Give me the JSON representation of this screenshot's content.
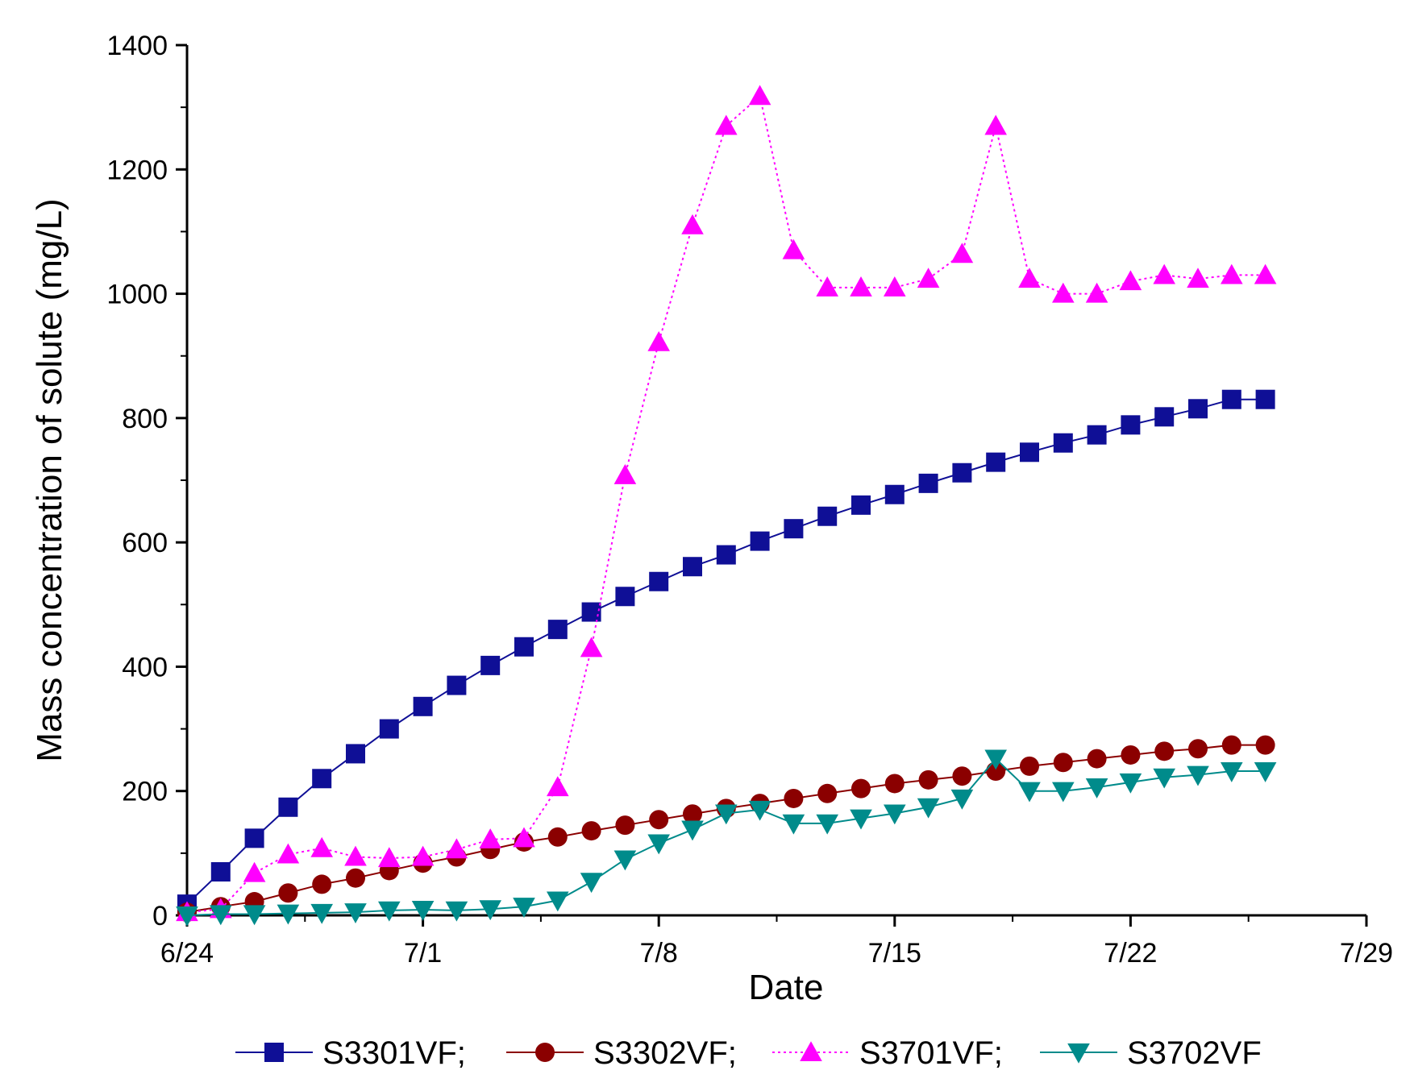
{
  "chart_data": {
    "type": "line",
    "title": "",
    "xlabel": "Date",
    "ylabel": "Mass concentration of solute (mg/L)",
    "x_ticks": [
      "6/24",
      "7/1",
      "7/8",
      "7/15",
      "7/22",
      "7/29"
    ],
    "x_tick_days": [
      0,
      7,
      14,
      21,
      28,
      35
    ],
    "xlim_days": [
      0,
      35
    ],
    "y_ticks": [
      "0",
      "200",
      "400",
      "600",
      "800",
      "1000",
      "1200",
      "1400"
    ],
    "ylim": [
      0,
      1400
    ],
    "grid": false,
    "legend_position": "bottom",
    "series": [
      {
        "name": "S3301VF",
        "legend_label": "S3301VF;",
        "color": "#0f0f96",
        "marker": "square",
        "line": "solid",
        "x_days": [
          0,
          1,
          2,
          3,
          4,
          5,
          6,
          7,
          8,
          9,
          10,
          11,
          12,
          13,
          14,
          15,
          16,
          17,
          18,
          19,
          20,
          21,
          22,
          23,
          24,
          25,
          26,
          27,
          28,
          29,
          30,
          31,
          32
        ],
        "values": [
          18,
          70,
          124,
          174,
          220,
          260,
          300,
          336,
          370,
          402,
          432,
          460,
          488,
          513,
          537,
          561,
          580,
          602,
          622,
          642,
          660,
          677,
          695,
          712,
          729,
          745,
          760,
          773,
          789,
          802,
          815,
          830,
          830
        ]
      },
      {
        "name": "S3302VF",
        "legend_label": "S3302VF;",
        "color": "#8b0000",
        "marker": "circle",
        "line": "solid",
        "x_days": [
          0,
          1,
          2,
          3,
          4,
          5,
          6,
          7,
          8,
          9,
          10,
          11,
          12,
          13,
          14,
          15,
          16,
          17,
          18,
          19,
          20,
          21,
          22,
          23,
          24,
          25,
          26,
          27,
          28,
          29,
          30,
          31,
          32
        ],
        "values": [
          5,
          14,
          22,
          36,
          50,
          60,
          72,
          84,
          94,
          106,
          118,
          126,
          136,
          145,
          154,
          163,
          172,
          180,
          188,
          196,
          204,
          212,
          218,
          224,
          232,
          240,
          246,
          252,
          258,
          264,
          268,
          274,
          274
        ]
      },
      {
        "name": "S3701VF",
        "legend_label": "S3701VF;",
        "color": "#ff00ff",
        "marker": "triangle-up",
        "line": "dotted",
        "x_days": [
          0,
          1,
          2,
          3,
          4,
          5,
          6,
          7,
          8,
          9,
          10,
          11,
          12,
          13,
          14,
          15,
          16,
          17,
          18,
          19,
          20,
          21,
          22,
          23,
          24,
          25,
          26,
          27,
          28,
          29,
          30,
          31,
          32
        ],
        "values": [
          5,
          10,
          68,
          98,
          108,
          94,
          92,
          94,
          106,
          122,
          124,
          206,
          430,
          708,
          922,
          1110,
          1270,
          1318,
          1070,
          1010,
          1010,
          1010,
          1024,
          1064,
          1270,
          1024,
          1000,
          1000,
          1020,
          1030,
          1024,
          1030,
          1030
        ]
      },
      {
        "name": "S3702VF",
        "legend_label": "S3702VF",
        "color": "#008b8b",
        "marker": "triangle-down",
        "line": "solid",
        "x_days": [
          0,
          1,
          2,
          3,
          4,
          5,
          6,
          7,
          8,
          9,
          10,
          11,
          12,
          13,
          14,
          15,
          16,
          17,
          18,
          19,
          20,
          21,
          22,
          23,
          24,
          25,
          26,
          27,
          28,
          29,
          30,
          31,
          32
        ],
        "values": [
          0,
          2,
          2,
          3,
          4,
          5,
          8,
          9,
          8,
          10,
          14,
          24,
          54,
          90,
          116,
          138,
          164,
          170,
          148,
          148,
          156,
          164,
          174,
          188,
          252,
          200,
          200,
          206,
          214,
          222,
          226,
          232,
          232
        ]
      }
    ]
  }
}
